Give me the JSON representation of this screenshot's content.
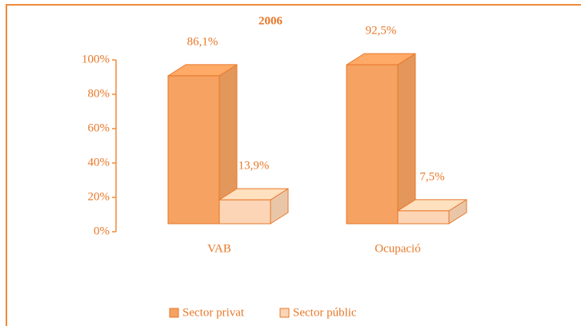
{
  "chart_data": {
    "type": "bar3d",
    "title": "2006",
    "categories": [
      "VAB",
      "Ocupació"
    ],
    "series": [
      {
        "name": "Sector privat",
        "color": "#f5a262",
        "values": [
          86.1,
          92.5
        ],
        "value_labels": [
          "86,1%",
          "92,5%"
        ]
      },
      {
        "name": "Sector públic",
        "color": "#fcd5b6",
        "values": [
          13.9,
          7.5
        ],
        "value_labels": [
          "13,9%",
          "7,5%"
        ]
      }
    ],
    "ylim": [
      0,
      100
    ],
    "yticks": [
      {
        "value": 0,
        "label": "0%"
      },
      {
        "value": 20,
        "label": "20%"
      },
      {
        "value": 40,
        "label": "40%"
      },
      {
        "value": 60,
        "label": "60%"
      },
      {
        "value": 80,
        "label": "80%"
      },
      {
        "value": 100,
        "label": "100%"
      }
    ],
    "legend": "bottom"
  }
}
